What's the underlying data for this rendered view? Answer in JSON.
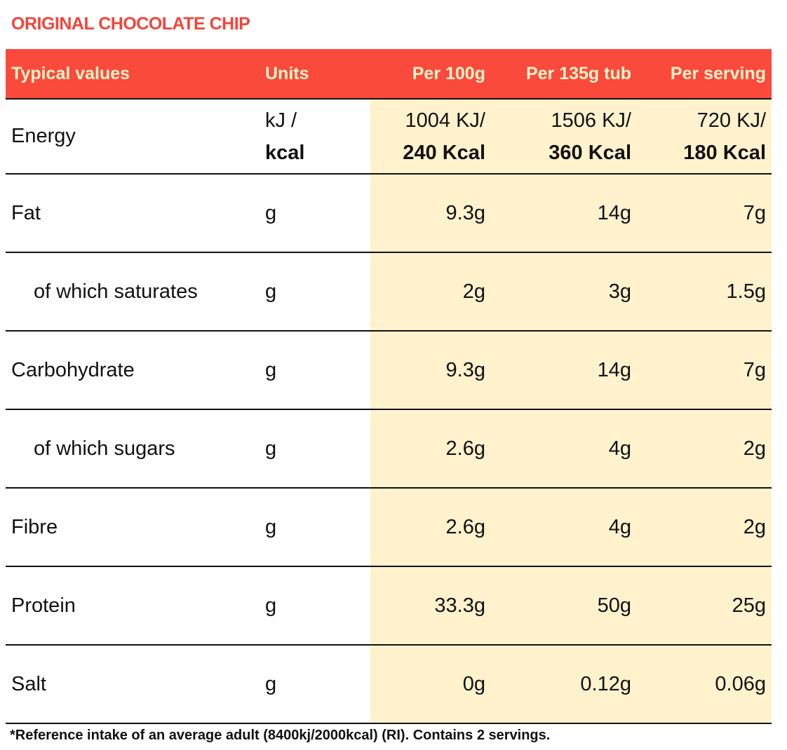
{
  "title": "ORIGINAL CHOCOLATE CHIP",
  "table": {
    "headers": [
      "Typical values",
      "Units",
      "Per 100g",
      "Per 135g tub",
      "Per serving"
    ],
    "rows": [
      [
        [
          "Energy"
        ],
        [
          "kJ /",
          "kcal"
        ],
        [
          "1004 KJ/",
          "240 Kcal"
        ],
        [
          "1506 KJ/",
          "360 Kcal"
        ],
        [
          "720 KJ/",
          "180 Kcal"
        ]
      ],
      [
        [
          "Fat"
        ],
        [
          "g"
        ],
        [
          "9.3g"
        ],
        [
          "14g"
        ],
        [
          "7g"
        ]
      ],
      [
        [
          "of which saturates"
        ],
        [
          "g"
        ],
        [
          "2g"
        ],
        [
          "3g"
        ],
        [
          "1.5g"
        ]
      ],
      [
        [
          "Carbohydrate"
        ],
        [
          "g"
        ],
        [
          "9.3g"
        ],
        [
          "14g"
        ],
        [
          "7g"
        ]
      ],
      [
        [
          "of which sugars"
        ],
        [
          "g"
        ],
        [
          "2.6g"
        ],
        [
          "4g"
        ],
        [
          "2g"
        ]
      ],
      [
        [
          "Fibre"
        ],
        [
          "g"
        ],
        [
          "2.6g"
        ],
        [
          "4g"
        ],
        [
          "2g"
        ]
      ],
      [
        [
          "Protein"
        ],
        [
          "g"
        ],
        [
          "33.3g"
        ],
        [
          "50g"
        ],
        [
          "25g"
        ]
      ],
      [
        [
          "Salt"
        ],
        [
          "g"
        ],
        [
          "0g"
        ],
        [
          "0.12g"
        ],
        [
          "0.06g"
        ]
      ]
    ]
  },
  "footnote": "*Reference intake of an average adult (8400kj/2000kcal) (RI). Contains 2 servings."
}
